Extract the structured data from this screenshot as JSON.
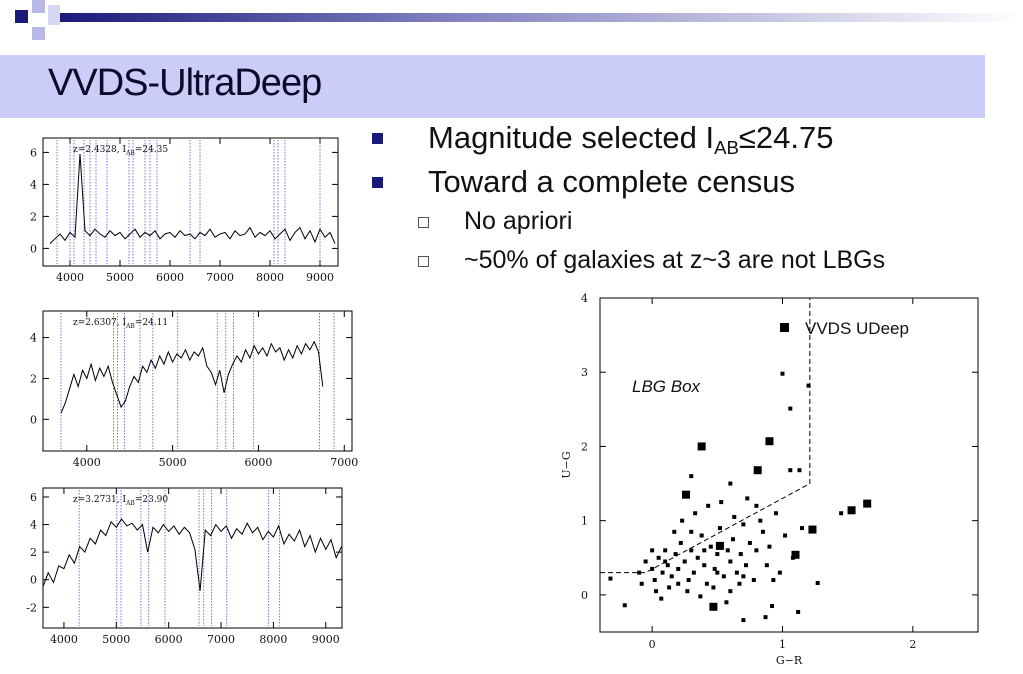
{
  "slide": {
    "title": "VVDS-UltraDeep",
    "bullets": [
      [
        "Magnitude selected I",
        "AB",
        "≤24.75"
      ],
      "Toward a complete census"
    ],
    "sub_bullets": [
      "No apriori",
      "~50% of galaxies at z~3 are not LBGs"
    ]
  },
  "chart_data": [
    {
      "type": "line",
      "annotation": [
        "z=2.4328, I",
        "AB",
        "=24.35"
      ],
      "color": "#000000",
      "line_color": "#3a3ad0",
      "xlim": [
        3460,
        9360
      ],
      "ylim": [
        -1.1,
        6.9
      ],
      "xticks": [
        4000,
        5000,
        6000,
        7000,
        8000,
        9000
      ],
      "yticks": [
        0,
        2,
        4,
        6
      ],
      "feature_lines": [
        3740,
        4000,
        4080,
        4280,
        4400,
        4520,
        4740,
        5180,
        5260,
        5500,
        5600,
        5740,
        6400,
        6600,
        8080,
        8160,
        8300,
        9000
      ],
      "x": [
        3600,
        3700,
        3800,
        3900,
        4000,
        4100,
        4200,
        4300,
        4400,
        4500,
        4600,
        4700,
        4800,
        4900,
        5000,
        5100,
        5200,
        5300,
        5400,
        5500,
        5600,
        5700,
        5800,
        5900,
        6000,
        6100,
        6200,
        6300,
        6400,
        6500,
        6600,
        6700,
        6800,
        6900,
        7000,
        7100,
        7200,
        7300,
        7400,
        7500,
        7600,
        7700,
        7800,
        7900,
        8000,
        8100,
        8200,
        8300,
        8400,
        8500,
        8600,
        8700,
        8800,
        8900,
        9000,
        9100,
        9200,
        9300
      ],
      "values": [
        0.3,
        0.6,
        0.9,
        0.5,
        1.0,
        0.7,
        5.9,
        1.1,
        0.8,
        1.2,
        0.9,
        0.7,
        1.1,
        0.8,
        1.0,
        0.6,
        0.9,
        1.2,
        0.7,
        1.0,
        0.8,
        1.1,
        0.6,
        0.9,
        1.0,
        0.7,
        1.1,
        0.8,
        0.9,
        0.6,
        1.0,
        0.8,
        1.2,
        0.7,
        0.9,
        1.0,
        0.6,
        1.1,
        0.8,
        0.9,
        1.3,
        0.7,
        1.0,
        0.8,
        1.1,
        0.6,
        0.9,
        1.2,
        0.5,
        1.0,
        1.3,
        0.6,
        1.1,
        0.4,
        1.2,
        0.7,
        1.0,
        0.3
      ]
    },
    {
      "type": "line",
      "annotation": [
        "z=2.6307, I",
        "AB",
        "=24.11"
      ],
      "color": "#000000",
      "line_color": "#3a3ad0",
      "xlim": [
        3490,
        7090
      ],
      "ylim": [
        -1.55,
        5.3
      ],
      "xticks": [
        4000,
        5000,
        6000,
        7000
      ],
      "yticks": [
        0,
        2,
        4
      ],
      "feature_lines": [
        3700,
        4310,
        4360,
        4440,
        4620,
        4770,
        5060,
        5520,
        5620,
        5710,
        5940,
        6710,
        6880
      ],
      "x": [
        3700,
        3750,
        3800,
        3850,
        3900,
        3950,
        4000,
        4050,
        4100,
        4150,
        4200,
        4250,
        4300,
        4350,
        4400,
        4450,
        4500,
        4550,
        4600,
        4650,
        4700,
        4750,
        4800,
        4850,
        4900,
        4950,
        5000,
        5050,
        5100,
        5150,
        5200,
        5250,
        5300,
        5350,
        5400,
        5450,
        5500,
        5550,
        5600,
        5650,
        5700,
        5750,
        5800,
        5850,
        5900,
        5950,
        6000,
        6050,
        6100,
        6150,
        6200,
        6250,
        6300,
        6350,
        6400,
        6450,
        6500,
        6550,
        6600,
        6650,
        6700,
        6750
      ],
      "values": [
        0.3,
        0.8,
        1.5,
        2.2,
        1.6,
        2.4,
        2.0,
        2.7,
        1.9,
        2.5,
        2.1,
        2.6,
        1.8,
        1.2,
        0.6,
        0.9,
        1.6,
        2.1,
        1.8,
        2.6,
        2.3,
        2.9,
        2.5,
        3.1,
        2.7,
        3.3,
        2.8,
        3.2,
        3.0,
        3.4,
        2.9,
        3.3,
        3.1,
        3.5,
        2.6,
        2.3,
        1.7,
        2.4,
        1.3,
        2.2,
        2.7,
        3.1,
        2.8,
        3.4,
        3.0,
        3.6,
        3.2,
        3.5,
        3.1,
        3.7,
        3.3,
        3.5,
        2.9,
        3.4,
        3.0,
        3.6,
        3.2,
        3.7,
        3.4,
        3.8,
        3.3,
        1.6
      ]
    },
    {
      "type": "line",
      "annotation": [
        "z=3.2731, I",
        "AB",
        "=23.90"
      ],
      "color": "#000000",
      "line_color": "#3a3ad0",
      "xlim": [
        3600,
        9310
      ],
      "ylim": [
        -3.5,
        6.65
      ],
      "xticks": [
        4000,
        5000,
        6000,
        7000,
        8000,
        9000
      ],
      "yticks": [
        -2,
        0,
        2,
        4,
        6
      ],
      "feature_lines": [
        4290,
        5010,
        5090,
        5470,
        5620,
        5930,
        6580,
        6670,
        6820,
        7110,
        7910,
        8120
      ],
      "x": [
        3600,
        3700,
        3800,
        3900,
        4000,
        4100,
        4200,
        4300,
        4400,
        4500,
        4600,
        4700,
        4800,
        4900,
        5000,
        5100,
        5200,
        5300,
        5400,
        5500,
        5600,
        5700,
        5800,
        5900,
        6000,
        6100,
        6200,
        6300,
        6400,
        6500,
        6600,
        6700,
        6800,
        6900,
        7000,
        7100,
        7200,
        7300,
        7400,
        7500,
        7600,
        7700,
        7800,
        7900,
        8000,
        8100,
        8200,
        8300,
        8400,
        8500,
        8600,
        8700,
        8800,
        8900,
        9000,
        9100,
        9200,
        9300
      ],
      "values": [
        -0.5,
        0.5,
        -0.2,
        1.0,
        0.8,
        1.8,
        1.2,
        2.4,
        2.0,
        3.0,
        2.6,
        3.6,
        3.2,
        4.2,
        3.8,
        4.4,
        3.9,
        4.1,
        3.6,
        4.0,
        2.0,
        3.8,
        3.4,
        4.0,
        3.5,
        3.9,
        3.3,
        3.8,
        3.4,
        2.2,
        -0.8,
        3.6,
        3.2,
        4.0,
        3.5,
        3.9,
        3.0,
        3.7,
        3.3,
        4.1,
        3.4,
        3.8,
        2.9,
        3.5,
        3.1,
        3.9,
        2.6,
        3.3,
        2.8,
        3.6,
        2.4,
        3.2,
        2.0,
        3.0,
        2.2,
        2.9,
        1.6,
        2.4
      ]
    },
    {
      "type": "scatter",
      "x_label": "G−R",
      "y_label": "U−G",
      "annotation": "LBG Box",
      "color": "#000000",
      "xlim": [
        -0.4,
        2.5
      ],
      "ylim": [
        -0.5,
        4
      ],
      "xticks": [
        0,
        1,
        2
      ],
      "yticks": [
        0,
        1,
        2,
        3,
        4
      ],
      "box_line": {
        "x": [
          -0.4,
          -0.05,
          1.21,
          1.21
        ],
        "y": [
          0.3,
          0.3,
          1.5,
          4
        ]
      },
      "series": [
        {
          "name": "VVDS UDeep",
          "x": [
            0.38,
            0.9,
            0.81,
            0.26,
            1.53,
            1.65,
            1.23,
            1.1,
            0.47,
            0.52
          ],
          "values": [
            2.0,
            2.07,
            1.68,
            1.35,
            1.14,
            1.23,
            0.88,
            0.54,
            -0.16,
            0.66
          ]
        },
        {
          "x": [
            -0.1,
            -0.05,
            0.0,
            0.02,
            0.05,
            0.08,
            0.1,
            0.12,
            0.15,
            0.18,
            0.2,
            0.22,
            0.25,
            0.28,
            0.3,
            0.32,
            0.35,
            0.38,
            0.4,
            0.42,
            0.45,
            0.48,
            0.5,
            0.52,
            0.55,
            0.58,
            0.6,
            0.62,
            0.65,
            0.68,
            0.7,
            0.72,
            0.75,
            0.78,
            0.8,
            0.85,
            0.88,
            0.9,
            0.95,
            0.98,
            0.03,
            0.07,
            0.13,
            0.17,
            0.23,
            0.27,
            0.33,
            0.37,
            0.43,
            0.47,
            0.53,
            0.57,
            0.63,
            0.67,
            0.73,
            0.83,
            0.93,
            1.02,
            1.08,
            1.15,
            -0.08,
            0.0,
            0.1,
            0.2,
            0.3,
            0.4,
            0.5,
            0.6,
            0.7,
            0.8,
            1.0,
            1.06,
            1.2,
            1.06,
            1.13,
            -0.21,
            -0.32,
            1.12,
            1.27,
            0.7,
            0.92,
            0.3,
            0.6,
            1.45,
            0.87
          ],
          "values": [
            0.3,
            0.45,
            0.35,
            0.2,
            0.5,
            0.3,
            0.6,
            0.4,
            0.25,
            0.55,
            0.35,
            0.7,
            0.45,
            0.2,
            0.6,
            0.3,
            0.5,
            0.8,
            0.4,
            0.15,
            0.65,
            0.35,
            0.55,
            0.9,
            0.25,
            0.6,
            0.45,
            0.75,
            0.3,
            0.55,
            0.95,
            0.4,
            0.7,
            0.2,
            0.6,
            0.85,
            0.4,
            0.65,
            1.1,
            0.3,
            0.05,
            -0.05,
            0.1,
            0.85,
            1.0,
            0.05,
            1.1,
            -0.02,
            1.2,
            0.1,
            1.25,
            -0.1,
            1.05,
            0.15,
            1.3,
            1.0,
            0.2,
            0.8,
            0.5,
            0.9,
            0.15,
            0.6,
            0.45,
            0.15,
            0.85,
            0.6,
            0.3,
            0.05,
            0.25,
            1.2,
            2.98,
            2.51,
            2.82,
            1.68,
            1.68,
            -0.14,
            0.22,
            -0.23,
            0.16,
            -0.34,
            -0.15,
            1.6,
            1.5,
            1.1,
            -0.3
          ]
        }
      ]
    }
  ]
}
